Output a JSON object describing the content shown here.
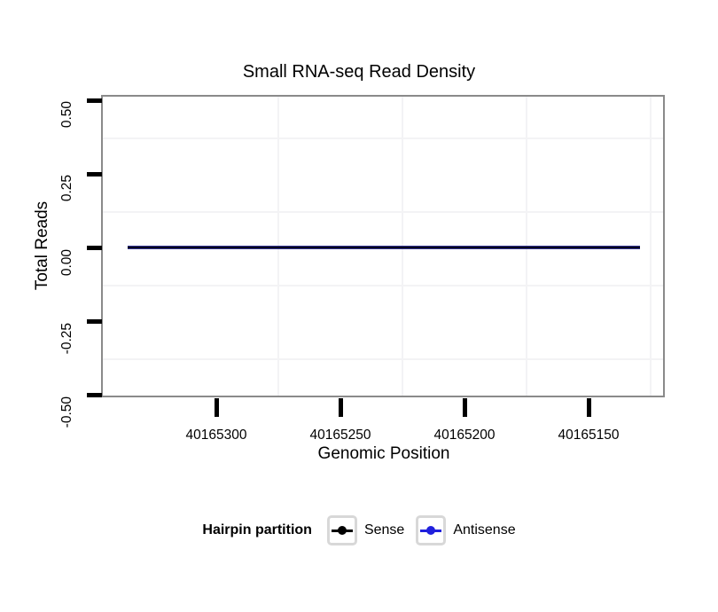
{
  "chart_data": {
    "type": "line",
    "title": "Small RNA-seq Read Density",
    "xlabel": "Genomic Position",
    "ylabel": "Total Reads",
    "x_axis": {
      "reversed": true,
      "tick_values": [
        40165300,
        40165250,
        40165200,
        40165150
      ],
      "tick_labels": [
        "40165300",
        "40165250",
        "40165200",
        "40165150"
      ],
      "range_approx": [
        40165345,
        40165119
      ]
    },
    "y_axis": {
      "tick_values": [
        0.5,
        0.25,
        0.0,
        -0.25,
        -0.5
      ],
      "tick_labels": [
        "0.50",
        "0.25",
        "0.00",
        "-0.25",
        "-0.50"
      ],
      "range": [
        -0.5,
        0.5
      ]
    },
    "grid": {
      "major": "hidden",
      "minor": "visible-light-gray"
    },
    "series": [
      {
        "name": "Sense",
        "color": "#000000",
        "x_start": 40165335,
        "x_end": 40165129,
        "constant_y": 0
      },
      {
        "name": "Antisense",
        "color": "#2020dd",
        "x_start": 40165335,
        "x_end": 40165129,
        "constant_y": 0
      }
    ],
    "legend": {
      "title": "Hairpin partition",
      "position": "bottom",
      "entries": [
        {
          "label": "Sense",
          "color": "#000000",
          "marker": "point-on-line"
        },
        {
          "label": "Antisense",
          "color": "#2020dd",
          "marker": "point-on-line"
        }
      ]
    }
  },
  "colors": {
    "background": "#ffffff",
    "panel_border": "#8a8a8a",
    "minor_grid": "#f3f3f5",
    "axis_tick": "#000000",
    "sense": "#000000",
    "antisense": "#2020dd",
    "overlap_line_center": "#07071d",
    "overlap_line_edge": "#30308c",
    "legend_key_border": "#d8d8d8"
  }
}
